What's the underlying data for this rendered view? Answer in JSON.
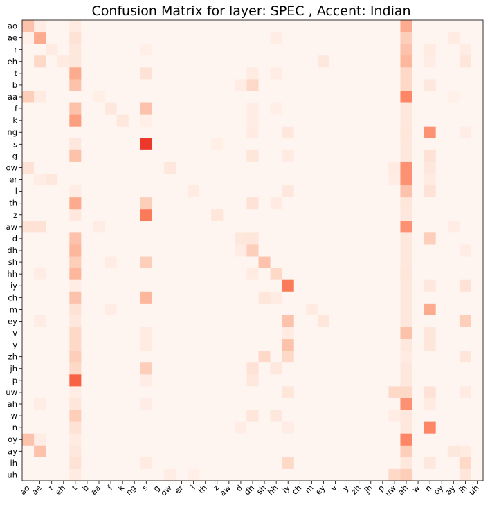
{
  "chart_data": {
    "type": "heatmap",
    "title": "Confusion Matrix for layer: SPEC , Accent: Indian",
    "row_labels": [
      "ao",
      "ae",
      "r",
      "eh",
      "t",
      "b",
      "aa",
      "f",
      "k",
      "ng",
      "s",
      "g",
      "ow",
      "er",
      "l",
      "th",
      "z",
      "aw",
      "d",
      "dh",
      "sh",
      "hh",
      "iy",
      "ch",
      "m",
      "ey",
      "v",
      "y",
      "zh",
      "jh",
      "p",
      "uw",
      "ah",
      "w",
      "n",
      "oy",
      "ay",
      "ih",
      "uh"
    ],
    "col_labels": [
      "ao",
      "ae",
      "r",
      "eh",
      "t",
      "b",
      "aa",
      "f",
      "k",
      "ng",
      "s",
      "g",
      "ow",
      "er",
      "l",
      "th",
      "z",
      "aw",
      "d",
      "dh",
      "sh",
      "hh",
      "iy",
      "ch",
      "m",
      "ey",
      "v",
      "y",
      "zh",
      "jh",
      "p",
      "uw",
      "ah",
      "w",
      "n",
      "oy",
      "ay",
      "ih",
      "uh"
    ],
    "colormap": "Reds",
    "colormap_stops": [
      "#fff5f0",
      "#fee0d2",
      "#fcbba1",
      "#fc9272",
      "#fb6a4a",
      "#ef3b2c",
      "#cb181d"
    ],
    "value_range": [
      0,
      1
    ],
    "cells": [
      [
        0,
        0,
        0.3
      ],
      [
        0,
        32,
        0.4
      ],
      [
        0,
        4,
        0.08
      ],
      [
        0,
        1,
        0.06
      ],
      [
        1,
        1,
        0.4
      ],
      [
        1,
        4,
        0.15
      ],
      [
        1,
        32,
        0.25
      ],
      [
        1,
        36,
        0.08
      ],
      [
        1,
        0,
        0.04
      ],
      [
        1,
        21,
        0.06
      ],
      [
        2,
        2,
        0.08
      ],
      [
        2,
        32,
        0.3
      ],
      [
        2,
        4,
        0.1
      ],
      [
        2,
        34,
        0.08
      ],
      [
        2,
        10,
        0.05
      ],
      [
        2,
        37,
        0.06
      ],
      [
        3,
        1,
        0.2
      ],
      [
        3,
        3,
        0.08
      ],
      [
        3,
        32,
        0.35
      ],
      [
        3,
        4,
        0.1
      ],
      [
        3,
        25,
        0.1
      ],
      [
        3,
        37,
        0.12
      ],
      [
        3,
        34,
        0.06
      ],
      [
        4,
        4,
        0.4
      ],
      [
        4,
        10,
        0.15
      ],
      [
        4,
        32,
        0.2
      ],
      [
        4,
        19,
        0.08
      ],
      [
        4,
        21,
        0.06
      ],
      [
        5,
        4,
        0.3
      ],
      [
        5,
        19,
        0.2
      ],
      [
        5,
        32,
        0.2
      ],
      [
        5,
        34,
        0.1
      ],
      [
        5,
        18,
        0.06
      ],
      [
        6,
        0,
        0.25
      ],
      [
        6,
        1,
        0.08
      ],
      [
        6,
        32,
        0.55
      ],
      [
        6,
        6,
        0.05
      ],
      [
        6,
        36,
        0.04
      ],
      [
        7,
        4,
        0.3
      ],
      [
        7,
        10,
        0.3
      ],
      [
        7,
        7,
        0.1
      ],
      [
        7,
        32,
        0.1
      ],
      [
        7,
        19,
        0.06
      ],
      [
        7,
        21,
        0.05
      ],
      [
        8,
        4,
        0.45
      ],
      [
        8,
        8,
        0.1
      ],
      [
        8,
        32,
        0.1
      ],
      [
        8,
        10,
        0.05
      ],
      [
        8,
        19,
        0.06
      ],
      [
        9,
        34,
        0.5
      ],
      [
        9,
        22,
        0.1
      ],
      [
        9,
        32,
        0.12
      ],
      [
        9,
        19,
        0.08
      ],
      [
        9,
        37,
        0.06
      ],
      [
        10,
        10,
        0.85
      ],
      [
        10,
        4,
        0.1
      ],
      [
        10,
        32,
        0.1
      ],
      [
        10,
        16,
        0.05
      ],
      [
        11,
        4,
        0.3
      ],
      [
        11,
        19,
        0.12
      ],
      [
        11,
        34,
        0.15
      ],
      [
        11,
        32,
        0.1
      ],
      [
        11,
        22,
        0.08
      ],
      [
        12,
        0,
        0.15
      ],
      [
        12,
        32,
        0.5
      ],
      [
        12,
        12,
        0.1
      ],
      [
        12,
        34,
        0.1
      ],
      [
        12,
        31,
        0.08
      ],
      [
        13,
        32,
        0.5
      ],
      [
        13,
        2,
        0.1
      ],
      [
        13,
        1,
        0.06
      ],
      [
        13,
        34,
        0.08
      ],
      [
        13,
        31,
        0.06
      ],
      [
        14,
        32,
        0.3
      ],
      [
        14,
        34,
        0.15
      ],
      [
        14,
        22,
        0.1
      ],
      [
        14,
        14,
        0.08
      ],
      [
        14,
        4,
        0.06
      ],
      [
        15,
        4,
        0.4
      ],
      [
        15,
        10,
        0.25
      ],
      [
        15,
        19,
        0.15
      ],
      [
        15,
        32,
        0.12
      ],
      [
        15,
        21,
        0.08
      ],
      [
        16,
        10,
        0.6
      ],
      [
        16,
        4,
        0.1
      ],
      [
        16,
        16,
        0.12
      ],
      [
        16,
        32,
        0.1
      ],
      [
        17,
        0,
        0.15
      ],
      [
        17,
        1,
        0.15
      ],
      [
        17,
        32,
        0.5
      ],
      [
        17,
        6,
        0.06
      ],
      [
        17,
        36,
        0.06
      ],
      [
        18,
        4,
        0.3
      ],
      [
        18,
        34,
        0.25
      ],
      [
        18,
        18,
        0.1
      ],
      [
        18,
        19,
        0.12
      ],
      [
        18,
        32,
        0.1
      ],
      [
        19,
        4,
        0.35
      ],
      [
        19,
        19,
        0.25
      ],
      [
        19,
        32,
        0.1
      ],
      [
        19,
        18,
        0.06
      ],
      [
        19,
        37,
        0.06
      ],
      [
        20,
        4,
        0.25
      ],
      [
        20,
        10,
        0.25
      ],
      [
        20,
        20,
        0.3
      ],
      [
        20,
        32,
        0.1
      ],
      [
        20,
        7,
        0.06
      ],
      [
        21,
        4,
        0.35
      ],
      [
        21,
        21,
        0.2
      ],
      [
        21,
        32,
        0.12
      ],
      [
        21,
        19,
        0.08
      ],
      [
        21,
        1,
        0.06
      ],
      [
        22,
        22,
        0.6
      ],
      [
        22,
        37,
        0.15
      ],
      [
        22,
        34,
        0.1
      ],
      [
        22,
        32,
        0.1
      ],
      [
        22,
        4,
        0.06
      ],
      [
        23,
        4,
        0.3
      ],
      [
        23,
        10,
        0.35
      ],
      [
        23,
        20,
        0.12
      ],
      [
        23,
        21,
        0.08
      ],
      [
        23,
        32,
        0.1
      ],
      [
        24,
        34,
        0.4
      ],
      [
        24,
        4,
        0.15
      ],
      [
        24,
        24,
        0.08
      ],
      [
        24,
        32,
        0.1
      ],
      [
        24,
        7,
        0.06
      ],
      [
        25,
        22,
        0.3
      ],
      [
        25,
        37,
        0.25
      ],
      [
        25,
        25,
        0.12
      ],
      [
        25,
        32,
        0.1
      ],
      [
        25,
        4,
        0.1
      ],
      [
        25,
        1,
        0.06
      ],
      [
        26,
        32,
        0.3
      ],
      [
        26,
        4,
        0.2
      ],
      [
        26,
        34,
        0.12
      ],
      [
        26,
        10,
        0.08
      ],
      [
        26,
        22,
        0.08
      ],
      [
        27,
        22,
        0.3
      ],
      [
        27,
        4,
        0.2
      ],
      [
        27,
        34,
        0.12
      ],
      [
        27,
        32,
        0.1
      ],
      [
        27,
        10,
        0.08
      ],
      [
        28,
        4,
        0.25
      ],
      [
        28,
        20,
        0.2
      ],
      [
        28,
        22,
        0.2
      ],
      [
        28,
        37,
        0.12
      ],
      [
        28,
        32,
        0.08
      ],
      [
        29,
        4,
        0.2
      ],
      [
        29,
        10,
        0.25
      ],
      [
        29,
        19,
        0.15
      ],
      [
        29,
        21,
        0.1
      ],
      [
        29,
        32,
        0.1
      ],
      [
        30,
        4,
        0.7
      ],
      [
        30,
        19,
        0.1
      ],
      [
        30,
        32,
        0.1
      ],
      [
        30,
        10,
        0.06
      ],
      [
        31,
        31,
        0.2
      ],
      [
        31,
        32,
        0.2
      ],
      [
        31,
        34,
        0.15
      ],
      [
        31,
        22,
        0.12
      ],
      [
        31,
        37,
        0.08
      ],
      [
        31,
        4,
        0.06
      ],
      [
        32,
        32,
        0.5
      ],
      [
        32,
        4,
        0.12
      ],
      [
        32,
        1,
        0.06
      ],
      [
        32,
        10,
        0.06
      ],
      [
        32,
        34,
        0.08
      ],
      [
        33,
        4,
        0.25
      ],
      [
        33,
        19,
        0.12
      ],
      [
        33,
        32,
        0.1
      ],
      [
        33,
        21,
        0.1
      ],
      [
        33,
        31,
        0.06
      ],
      [
        34,
        34,
        0.55
      ],
      [
        34,
        4,
        0.15
      ],
      [
        34,
        32,
        0.1
      ],
      [
        34,
        18,
        0.06
      ],
      [
        34,
        22,
        0.06
      ],
      [
        35,
        0,
        0.3
      ],
      [
        35,
        32,
        0.55
      ],
      [
        35,
        4,
        0.08
      ],
      [
        35,
        1,
        0.06
      ],
      [
        36,
        1,
        0.3
      ],
      [
        36,
        32,
        0.25
      ],
      [
        36,
        4,
        0.1
      ],
      [
        36,
        36,
        0.1
      ],
      [
        36,
        37,
        0.08
      ],
      [
        37,
        4,
        0.15
      ],
      [
        37,
        22,
        0.2
      ],
      [
        37,
        37,
        0.2
      ],
      [
        37,
        32,
        0.1
      ],
      [
        37,
        10,
        0.08
      ],
      [
        37,
        34,
        0.1
      ],
      [
        38,
        31,
        0.2
      ],
      [
        38,
        32,
        0.25
      ],
      [
        38,
        37,
        0.12
      ],
      [
        38,
        4,
        0.08
      ],
      [
        38,
        12,
        0.06
      ],
      [
        38,
        14,
        0.05
      ]
    ]
  }
}
